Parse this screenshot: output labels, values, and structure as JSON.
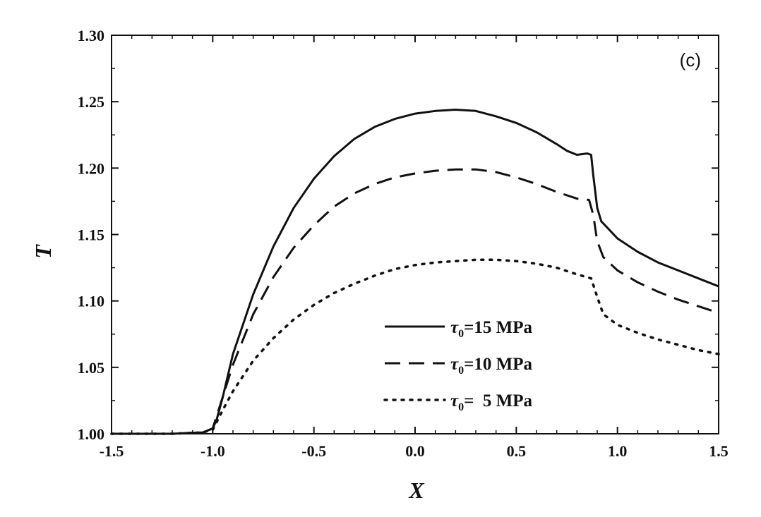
{
  "chart_data": {
    "type": "line",
    "title": "",
    "panel_label": "(c)",
    "xlabel": "X",
    "ylabel": "T",
    "xlim": [
      -1.5,
      1.5
    ],
    "ylim": [
      1.0,
      1.3
    ],
    "x_ticks": [
      -1.5,
      -1.0,
      -0.5,
      0.0,
      0.5,
      1.0,
      1.5
    ],
    "x_tick_labels": [
      "-1.5",
      "-1.0",
      "-0.5",
      "0.0",
      "0.5",
      "1.0",
      "1.5"
    ],
    "y_ticks": [
      1.0,
      1.05,
      1.1,
      1.15,
      1.2,
      1.25,
      1.3
    ],
    "y_tick_labels": [
      "1.00",
      "1.05",
      "1.10",
      "1.15",
      "1.20",
      "1.25",
      "1.30"
    ],
    "grid": false,
    "legend_position": "bottom-right",
    "series": [
      {
        "name": "τ0=15 MPa",
        "legend_symbol": "τ",
        "legend_subscript": "0",
        "legend_value": "=15 MPa",
        "style": "solid",
        "color": "#111111",
        "x": [
          -1.5,
          -1.2,
          -1.05,
          -1.0,
          -0.98,
          -0.95,
          -0.9,
          -0.8,
          -0.7,
          -0.6,
          -0.5,
          -0.4,
          -0.3,
          -0.2,
          -0.1,
          0.0,
          0.1,
          0.2,
          0.3,
          0.4,
          0.5,
          0.6,
          0.7,
          0.75,
          0.8,
          0.85,
          0.87,
          0.88,
          0.9,
          0.92,
          1.0,
          1.1,
          1.2,
          1.3,
          1.4,
          1.5
        ],
        "y": [
          1.0,
          1.0,
          1.001,
          1.004,
          1.011,
          1.028,
          1.06,
          1.105,
          1.141,
          1.17,
          1.192,
          1.209,
          1.222,
          1.231,
          1.237,
          1.241,
          1.243,
          1.244,
          1.243,
          1.239,
          1.234,
          1.227,
          1.218,
          1.213,
          1.21,
          1.211,
          1.21,
          1.195,
          1.17,
          1.16,
          1.147,
          1.137,
          1.129,
          1.123,
          1.117,
          1.111
        ]
      },
      {
        "name": "τ0=10 MPa",
        "legend_symbol": "τ",
        "legend_subscript": "0",
        "legend_value": "=10 MPa",
        "style": "dashed",
        "color": "#111111",
        "x": [
          -1.5,
          -1.2,
          -1.05,
          -1.0,
          -0.95,
          -0.9,
          -0.8,
          -0.7,
          -0.6,
          -0.5,
          -0.4,
          -0.3,
          -0.2,
          -0.1,
          0.0,
          0.1,
          0.2,
          0.3,
          0.4,
          0.5,
          0.6,
          0.7,
          0.8,
          0.86,
          0.88,
          0.9,
          0.93,
          1.0,
          1.1,
          1.2,
          1.3,
          1.4,
          1.5
        ],
        "y": [
          1.0,
          1.0,
          1.001,
          1.004,
          1.028,
          1.052,
          1.09,
          1.118,
          1.14,
          1.157,
          1.171,
          1.181,
          1.188,
          1.193,
          1.196,
          1.198,
          1.199,
          1.199,
          1.197,
          1.193,
          1.188,
          1.182,
          1.177,
          1.176,
          1.165,
          1.145,
          1.133,
          1.123,
          1.114,
          1.107,
          1.101,
          1.096,
          1.091
        ]
      },
      {
        "name": "τ0=  5 MPa",
        "legend_symbol": "τ",
        "legend_subscript": "0",
        "legend_value": "=  5 MPa",
        "style": "dotted",
        "color": "#111111",
        "x": [
          -1.5,
          -1.2,
          -1.05,
          -1.0,
          -0.95,
          -0.9,
          -0.8,
          -0.7,
          -0.6,
          -0.5,
          -0.4,
          -0.3,
          -0.2,
          -0.1,
          0.0,
          0.1,
          0.2,
          0.3,
          0.4,
          0.5,
          0.6,
          0.7,
          0.8,
          0.87,
          0.9,
          0.93,
          1.0,
          1.1,
          1.2,
          1.3,
          1.4,
          1.5
        ],
        "y": [
          1.0,
          1.0,
          1.001,
          1.003,
          1.018,
          1.032,
          1.055,
          1.072,
          1.086,
          1.097,
          1.106,
          1.113,
          1.119,
          1.124,
          1.127,
          1.129,
          1.13,
          1.131,
          1.131,
          1.13,
          1.128,
          1.125,
          1.12,
          1.117,
          1.103,
          1.09,
          1.082,
          1.076,
          1.071,
          1.067,
          1.063,
          1.06
        ]
      }
    ]
  }
}
